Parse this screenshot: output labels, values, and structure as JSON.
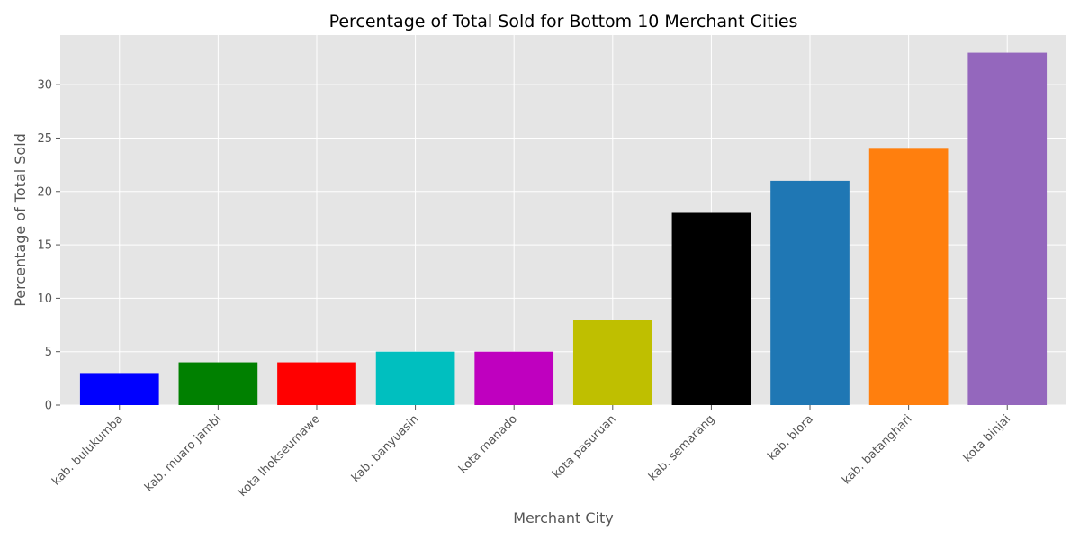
{
  "chart_data": {
    "type": "bar",
    "title": "Percentage of Total Sold for Bottom 10 Merchant Cities",
    "xlabel": "Merchant City",
    "ylabel": "Percentage of Total Sold",
    "categories": [
      "kab. bulukumba",
      "kab. muaro jambi",
      "kota lhokseumawe",
      "kab. banyuasin",
      "kota manado",
      "kota pasuruan",
      "kab. semarang",
      "kab. blora",
      "kab. batanghari",
      "kota binjai"
    ],
    "values": [
      3,
      4,
      4,
      5,
      5,
      8,
      18,
      21,
      24,
      33
    ],
    "colors": [
      "#0000ff",
      "#008000",
      "#ff0000",
      "#00bfbf",
      "#bf00bf",
      "#bfbf00",
      "#000000",
      "#1f77b4",
      "#ff7f0e",
      "#9467bd"
    ],
    "ylim": [
      0,
      34.65
    ],
    "yticks": [
      0,
      5,
      10,
      15,
      20,
      25,
      30
    ],
    "grid": true,
    "style": {
      "background": "#e5e5e5",
      "grid_color": "#ffffff",
      "tick_color": "#555555"
    },
    "xtick_rotation_deg": 45
  }
}
